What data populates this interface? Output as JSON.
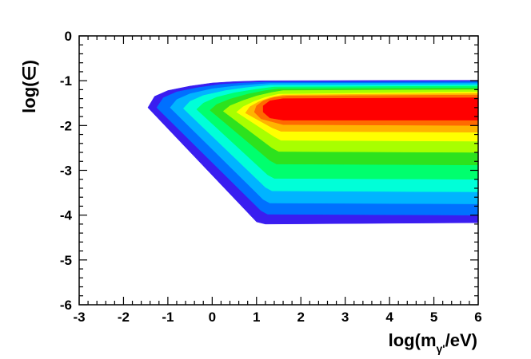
{
  "chart_data": {
    "type": "contour",
    "xlabel": {
      "prefix": "log(m",
      "sub": "γ'",
      "suffix": "/eV)"
    },
    "ylabel": "log(∈)",
    "xlim": [
      -3,
      6
    ],
    "ylim": [
      -6,
      0
    ],
    "x_ticks": [
      "-3",
      "-2",
      "-1",
      "0",
      "1",
      "2",
      "3",
      "4",
      "5",
      "6"
    ],
    "y_ticks": [
      "0",
      "-1",
      "-2",
      "-3",
      "-4",
      "-5",
      "-6"
    ],
    "grid": false,
    "legend": "none",
    "levels": [
      {
        "color": "#3a1df0",
        "polygon": [
          [
            6.0,
            -4.17
          ],
          [
            1.2,
            -4.2
          ],
          [
            1.0,
            -4.15
          ],
          [
            -1.45,
            -1.6
          ],
          [
            -1.3,
            -1.35
          ],
          [
            -1.0,
            -1.22
          ],
          [
            -0.5,
            -1.12
          ],
          [
            0.0,
            -1.05
          ],
          [
            0.5,
            -1.02
          ],
          [
            1.1,
            -1.0
          ],
          [
            6.0,
            -0.99
          ]
        ]
      },
      {
        "color": "#0070ff",
        "polygon": [
          [
            6.0,
            -4.0
          ],
          [
            1.25,
            -3.98
          ],
          [
            1.1,
            -3.9
          ],
          [
            -1.25,
            -1.6
          ],
          [
            -1.1,
            -1.38
          ],
          [
            -0.8,
            -1.25
          ],
          [
            -0.3,
            -1.15
          ],
          [
            0.2,
            -1.08
          ],
          [
            0.7,
            -1.05
          ],
          [
            1.2,
            -1.03
          ],
          [
            6.0,
            -1.02
          ]
        ]
      },
      {
        "color": "#00b4ff",
        "polygon": [
          [
            6.0,
            -3.75
          ],
          [
            1.3,
            -3.73
          ],
          [
            1.15,
            -3.65
          ],
          [
            -0.95,
            -1.6
          ],
          [
            -0.8,
            -1.42
          ],
          [
            -0.5,
            -1.29
          ],
          [
            0.0,
            -1.18
          ],
          [
            0.5,
            -1.12
          ],
          [
            1.0,
            -1.08
          ],
          [
            1.3,
            -1.06
          ],
          [
            6.0,
            -1.05
          ]
        ]
      },
      {
        "color": "#00ffd8",
        "polygon": [
          [
            6.0,
            -3.48
          ],
          [
            1.35,
            -3.46
          ],
          [
            1.2,
            -3.38
          ],
          [
            -0.65,
            -1.62
          ],
          [
            -0.5,
            -1.46
          ],
          [
            -0.2,
            -1.33
          ],
          [
            0.3,
            -1.22
          ],
          [
            0.8,
            -1.15
          ],
          [
            1.3,
            -1.1
          ],
          [
            6.0,
            -1.09
          ]
        ]
      },
      {
        "color": "#00ff6e",
        "polygon": [
          [
            6.0,
            -3.2
          ],
          [
            1.4,
            -3.18
          ],
          [
            1.25,
            -3.1
          ],
          [
            -0.35,
            -1.64
          ],
          [
            -0.2,
            -1.5
          ],
          [
            0.1,
            -1.37
          ],
          [
            0.5,
            -1.27
          ],
          [
            1.0,
            -1.19
          ],
          [
            1.4,
            -1.14
          ],
          [
            6.0,
            -1.12
          ]
        ]
      },
      {
        "color": "#2de21e",
        "polygon": [
          [
            6.0,
            -2.88
          ],
          [
            1.45,
            -2.86
          ],
          [
            1.3,
            -2.78
          ],
          [
            -0.05,
            -1.66
          ],
          [
            0.1,
            -1.53
          ],
          [
            0.4,
            -1.41
          ],
          [
            0.8,
            -1.3
          ],
          [
            1.2,
            -1.22
          ],
          [
            1.5,
            -1.18
          ],
          [
            6.0,
            -1.16
          ]
        ]
      },
      {
        "color": "#a8ff00",
        "polygon": [
          [
            6.0,
            -2.6
          ],
          [
            1.5,
            -2.58
          ],
          [
            1.35,
            -2.5
          ],
          [
            0.25,
            -1.68
          ],
          [
            0.4,
            -1.56
          ],
          [
            0.7,
            -1.44
          ],
          [
            1.0,
            -1.34
          ],
          [
            1.35,
            -1.26
          ],
          [
            1.6,
            -1.22
          ],
          [
            6.0,
            -1.2
          ]
        ]
      },
      {
        "color": "#ffff00",
        "polygon": [
          [
            6.0,
            -2.35
          ],
          [
            1.55,
            -2.33
          ],
          [
            1.4,
            -2.25
          ],
          [
            0.55,
            -1.7
          ],
          [
            0.7,
            -1.58
          ],
          [
            0.95,
            -1.46
          ],
          [
            1.2,
            -1.37
          ],
          [
            1.5,
            -1.3
          ],
          [
            6.0,
            -1.25
          ]
        ]
      },
      {
        "color": "#ffb400",
        "polygon": [
          [
            6.0,
            -2.15
          ],
          [
            1.55,
            -2.13
          ],
          [
            1.35,
            -2.05
          ],
          [
            0.75,
            -1.72
          ],
          [
            0.85,
            -1.58
          ],
          [
            1.05,
            -1.47
          ],
          [
            1.3,
            -1.38
          ],
          [
            1.6,
            -1.32
          ],
          [
            6.0,
            -1.28
          ]
        ]
      },
      {
        "color": "#ff6a00",
        "polygon": [
          [
            6.0,
            -2.0
          ],
          [
            1.6,
            -1.98
          ],
          [
            1.1,
            -1.85
          ],
          [
            0.95,
            -1.7
          ],
          [
            1.0,
            -1.56
          ],
          [
            1.15,
            -1.45
          ],
          [
            1.4,
            -1.37
          ],
          [
            1.7,
            -1.34
          ],
          [
            6.0,
            -1.32
          ]
        ]
      },
      {
        "color": "#ff0000",
        "polygon": [
          [
            6.0,
            -1.88
          ],
          [
            1.6,
            -1.88
          ],
          [
            1.3,
            -1.83
          ],
          [
            1.15,
            -1.7
          ],
          [
            1.15,
            -1.56
          ],
          [
            1.3,
            -1.45
          ],
          [
            1.6,
            -1.4
          ],
          [
            6.0,
            -1.38
          ]
        ]
      }
    ]
  }
}
